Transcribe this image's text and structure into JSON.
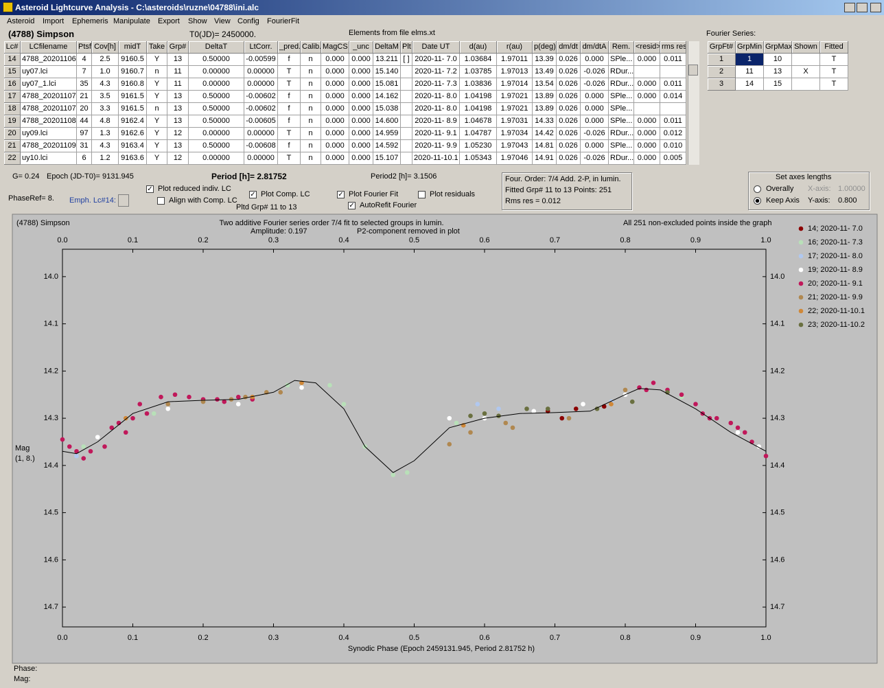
{
  "window": {
    "title": "Asteroid Lightcurve Analysis - C:\\asteroids\\ruzne\\04788\\ini.alc",
    "menu": [
      "Asteroid",
      "Import",
      "Ephemeris",
      "Manipulate",
      "Export",
      "Show",
      "View",
      "Config",
      "FourierFit"
    ]
  },
  "header": {
    "object": "(4788) Simpson",
    "t0": "T0(JD)= 2450000.",
    "elements": "Elements from file elms.xt"
  },
  "table": {
    "columns": [
      "Lc#",
      "LCfilename",
      "Ptsf",
      "Cov[h]",
      "midT",
      "Take",
      "Grp#",
      "DeltaT",
      "LtCorr.",
      "_pred.",
      "Calib.",
      "MagCS",
      "_unc",
      "DeltaM",
      "Plt",
      "Date UT",
      "d(au)",
      "r(au)",
      "p(deg)",
      "dm/dt",
      "dm/dtA",
      "Rem.",
      "<resid>",
      "rms res"
    ],
    "rows": [
      [
        "14",
        "4788_20201106",
        "4",
        "2.5",
        "9160.5",
        "Y",
        "13",
        "0.50000",
        "-0.00599",
        "f",
        "n",
        "0.000",
        "0.000",
        "13.211",
        "[ ]",
        "2020-11- 7.0",
        "1.03684",
        "1.97011",
        "13.39",
        "0.026",
        "0.000",
        "SPle...",
        "0.000",
        "0.011"
      ],
      [
        "15",
        "uy07.lci",
        "7",
        "1.0",
        "9160.7",
        "n",
        "11",
        "0.00000",
        "0.00000",
        "T",
        "n",
        "0.000",
        "0.000",
        "15.140",
        null,
        "2020-11- 7.2",
        "1.03785",
        "1.97013",
        "13.49",
        "0.026",
        "-0.026",
        "RDur...",
        null,
        null
      ],
      [
        "16",
        "uy07_1.lci",
        "35",
        "4.3",
        "9160.8",
        "Y",
        "11",
        "0.00000",
        "0.00000",
        "T",
        "n",
        "0.000",
        "0.000",
        "15.081",
        null,
        "2020-11- 7.3",
        "1.03836",
        "1.97014",
        "13.54",
        "0.026",
        "-0.026",
        "RDur...",
        "0.000",
        "0.011"
      ],
      [
        "17",
        "4788_20201107",
        "21",
        "3.5",
        "9161.5",
        "Y",
        "13",
        "0.50000",
        "-0.00602",
        "f",
        "n",
        "0.000",
        "0.000",
        "14.162",
        null,
        "2020-11- 8.0",
        "1.04198",
        "1.97021",
        "13.89",
        "0.026",
        "0.000",
        "SPle...",
        "0.000",
        "0.014"
      ],
      [
        "18",
        "4788_20201107",
        "20",
        "3.3",
        "9161.5",
        "n",
        "13",
        "0.50000",
        "-0.00602",
        "f",
        "n",
        "0.000",
        "0.000",
        "15.038",
        null,
        "2020-11- 8.0",
        "1.04198",
        "1.97021",
        "13.89",
        "0.026",
        "0.000",
        "SPle...",
        null,
        null
      ],
      [
        "19",
        "4788_20201108",
        "44",
        "4.8",
        "9162.4",
        "Y",
        "13",
        "0.50000",
        "-0.00605",
        "f",
        "n",
        "0.000",
        "0.000",
        "14.600",
        null,
        "2020-11- 8.9",
        "1.04678",
        "1.97031",
        "14.33",
        "0.026",
        "0.000",
        "SPle...",
        "0.000",
        "0.011"
      ],
      [
        "20",
        "uy09.lci",
        "97",
        "1.3",
        "9162.6",
        "Y",
        "12",
        "0.00000",
        "0.00000",
        "T",
        "n",
        "0.000",
        "0.000",
        "14.959",
        null,
        "2020-11- 9.1",
        "1.04787",
        "1.97034",
        "14.42",
        "0.026",
        "-0.026",
        "RDur...",
        "0.000",
        "0.012"
      ],
      [
        "21",
        "4788_20201109",
        "31",
        "4.3",
        "9163.4",
        "Y",
        "13",
        "0.50000",
        "-0.00608",
        "f",
        "n",
        "0.000",
        "0.000",
        "14.592",
        null,
        "2020-11- 9.9",
        "1.05230",
        "1.97043",
        "14.81",
        "0.026",
        "0.000",
        "SPle...",
        "0.000",
        "0.010"
      ],
      [
        "22",
        "uy10.lci",
        "6",
        "1.2",
        "9163.6",
        "Y",
        "12",
        "0.00000",
        "0.00000",
        "T",
        "n",
        "0.000",
        "0.000",
        "15.107",
        null,
        "2020-11-10.1",
        "1.05343",
        "1.97046",
        "14.91",
        "0.026",
        "-0.026",
        "RDur...",
        "0.000",
        "0.005"
      ]
    ]
  },
  "fourier_table": {
    "label": "Fourier Series:",
    "columns": [
      "GrpFt#",
      "GrpMin",
      "GrpMax",
      "Shown",
      "Fitted"
    ],
    "rows": [
      [
        "1",
        "1",
        "10",
        null,
        "T"
      ],
      [
        "2",
        "11",
        "13",
        "X",
        "T"
      ],
      [
        "3",
        "14",
        "15",
        null,
        "T"
      ]
    ]
  },
  "controls": {
    "g": "G= 0.24",
    "epoch": "Epoch (JD-T0)= 9131.945",
    "period": "Period [h]= 2.81752",
    "period2": "Period2 [h]= 3.1506",
    "phaseref": "PhaseRef= 8.",
    "emph": "Emph. Lc#14:",
    "pltd": "Pltd Grp#  11 to   13",
    "checkboxes": [
      {
        "label": "Plot reduced indiv. LC",
        "checked": true
      },
      {
        "label": "Align with Comp. LC",
        "checked": false
      },
      {
        "label": "Plot Comp. LC",
        "checked": true
      },
      {
        "label": "Plot Fourier Fit",
        "checked": true
      },
      {
        "label": "AutoRefit Fourier",
        "checked": true
      },
      {
        "label": "Plot residuals",
        "checked": false
      }
    ]
  },
  "fit_info": [
    "Four. Order:  7/4    Add. 2-P, in lumin.",
    "Fitted Grp# 11 to 13 Points: 251",
    "Rms res      = 0.012"
  ],
  "axes_box": {
    "title": "Set axes lengths",
    "options": [
      {
        "label": "Overally",
        "checked": false,
        "axis": "X-axis:",
        "value": "1.00000"
      },
      {
        "label": "Keep Axis",
        "checked": true,
        "axis": "Y-axis:",
        "value": "0.800"
      }
    ]
  },
  "chart_data": {
    "type": "scatter",
    "title": "Two additive Fourier series order 7/4 fit to selected groups in lumin.",
    "object": "(4788) Simpson",
    "amplitude": "Amplitude: 0.197",
    "note": "P2-component removed in plot",
    "points_note": "All 251 non-excluded points inside the graph",
    "xlabel": "Synodic Phase (Epoch 2459131.945, Period 2.81752 h)",
    "ylabel": [
      "Mag",
      "(1, 8.)"
    ],
    "xlim": [
      0,
      1
    ],
    "ylim": [
      13.942,
      14.742
    ],
    "y_inverted": true,
    "xticks": [
      {
        "value": 0,
        "label": "0.0"
      },
      0.1,
      0.2,
      0.3,
      0.4,
      0.5,
      0.6,
      0.7,
      0.8,
      0.9,
      {
        "value": 1,
        "label": "1.0"
      }
    ],
    "yticks": [
      {
        "value": 14,
        "label": "14.0"
      },
      14.1,
      14.2,
      14.3,
      14.4,
      14.5,
      14.6,
      14.7
    ],
    "fit": {
      "color": "#000000",
      "x": [
        0,
        0.02,
        0.05,
        0.1,
        0.15,
        0.2,
        0.25,
        0.3,
        0.33,
        0.36,
        0.4,
        0.43,
        0.47,
        0.5,
        0.55,
        0.6,
        0.65,
        0.7,
        0.75,
        0.8,
        0.82,
        0.85,
        0.9,
        0.95,
        1.0
      ],
      "y": [
        14.37,
        14.375,
        14.35,
        14.29,
        14.265,
        14.262,
        14.26,
        14.245,
        14.22,
        14.225,
        14.28,
        14.36,
        14.415,
        14.39,
        14.32,
        14.3,
        14.29,
        14.288,
        14.285,
        14.25,
        14.237,
        14.24,
        14.28,
        14.33,
        14.37
      ]
    },
    "series": [
      {
        "name": "14; 2020-11- 7.0",
        "color": "#8b0000",
        "x": [
          0.69,
          0.71,
          0.73,
          0.77
        ],
        "y": [
          14.285,
          14.3,
          14.28,
          14.275
        ]
      },
      {
        "name": "16; 2020-11- 7.3",
        "color": "#b8e0b8",
        "x": [
          0.13,
          0.32,
          0.38,
          0.4,
          0.43,
          0.47,
          0.49,
          0.56,
          0.88,
          0.03
        ],
        "y": [
          14.29,
          14.23,
          14.23,
          14.27,
          14.36,
          14.42,
          14.415,
          14.31,
          14.255,
          14.36
        ]
      },
      {
        "name": "17; 2020-11- 8.0",
        "color": "#b0c8f0",
        "x": [
          0.59,
          0.62,
          0.78,
          0.9,
          0.02
        ],
        "y": [
          14.27,
          14.28,
          14.265,
          14.27,
          14.38
        ]
      },
      {
        "name": "19; 2020-11- 8.9",
        "color": "#ffffff",
        "x": [
          0.05,
          0.15,
          0.25,
          0.34,
          0.55,
          0.6,
          0.67,
          0.74,
          0.8,
          0.84,
          0.91,
          0.96,
          0.99
        ],
        "y": [
          14.34,
          14.28,
          14.27,
          14.235,
          14.3,
          14.3,
          14.285,
          14.27,
          14.25,
          14.225,
          14.29,
          14.33,
          14.36
        ]
      },
      {
        "name": "20; 2020-11- 9.1",
        "color": "#c0185a",
        "x": [
          0,
          0.01,
          0.02,
          0.03,
          0.04,
          0.06,
          0.07,
          0.08,
          0.09,
          0.1,
          0.11,
          0.12,
          0.14,
          0.16,
          0.18,
          0.2,
          0.22,
          0.23,
          0.25,
          0.27,
          0.82,
          0.83,
          0.84,
          0.86,
          0.88,
          0.9,
          0.91,
          0.92,
          0.93,
          0.95,
          0.96,
          0.97,
          0.98,
          1.0
        ],
        "y": [
          14.345,
          14.36,
          14.37,
          14.385,
          14.37,
          14.36,
          14.32,
          14.31,
          14.33,
          14.3,
          14.27,
          14.29,
          14.255,
          14.25,
          14.255,
          14.26,
          14.26,
          14.265,
          14.255,
          14.26,
          14.235,
          14.24,
          14.225,
          14.24,
          14.25,
          14.27,
          14.29,
          14.3,
          14.3,
          14.31,
          14.32,
          14.33,
          14.35,
          14.38
        ]
      },
      {
        "name": "21; 2020-11- 9.9",
        "color": "#b08850",
        "x": [
          0.15,
          0.2,
          0.24,
          0.26,
          0.29,
          0.31,
          0.55,
          0.58,
          0.63,
          0.64,
          0.72,
          0.8
        ],
        "y": [
          14.27,
          14.265,
          14.26,
          14.255,
          14.245,
          14.245,
          14.355,
          14.33,
          14.31,
          14.32,
          14.3,
          14.24
        ]
      },
      {
        "name": "22; 2020-11-10.1",
        "color": "#d08838",
        "x": [
          0.09,
          0.27,
          0.34,
          0.57,
          0.78
        ],
        "y": [
          14.3,
          14.255,
          14.225,
          14.315,
          14.27
        ]
      },
      {
        "name": "23; 2020-11-10.2",
        "color": "#6a7040",
        "x": [
          0.58,
          0.6,
          0.62,
          0.66,
          0.69,
          0.76,
          0.81,
          0.86
        ],
        "y": [
          14.295,
          14.29,
          14.295,
          14.28,
          14.28,
          14.28,
          14.265,
          14.245
        ]
      }
    ]
  },
  "status": [
    "Phase:",
    "Mag:"
  ]
}
